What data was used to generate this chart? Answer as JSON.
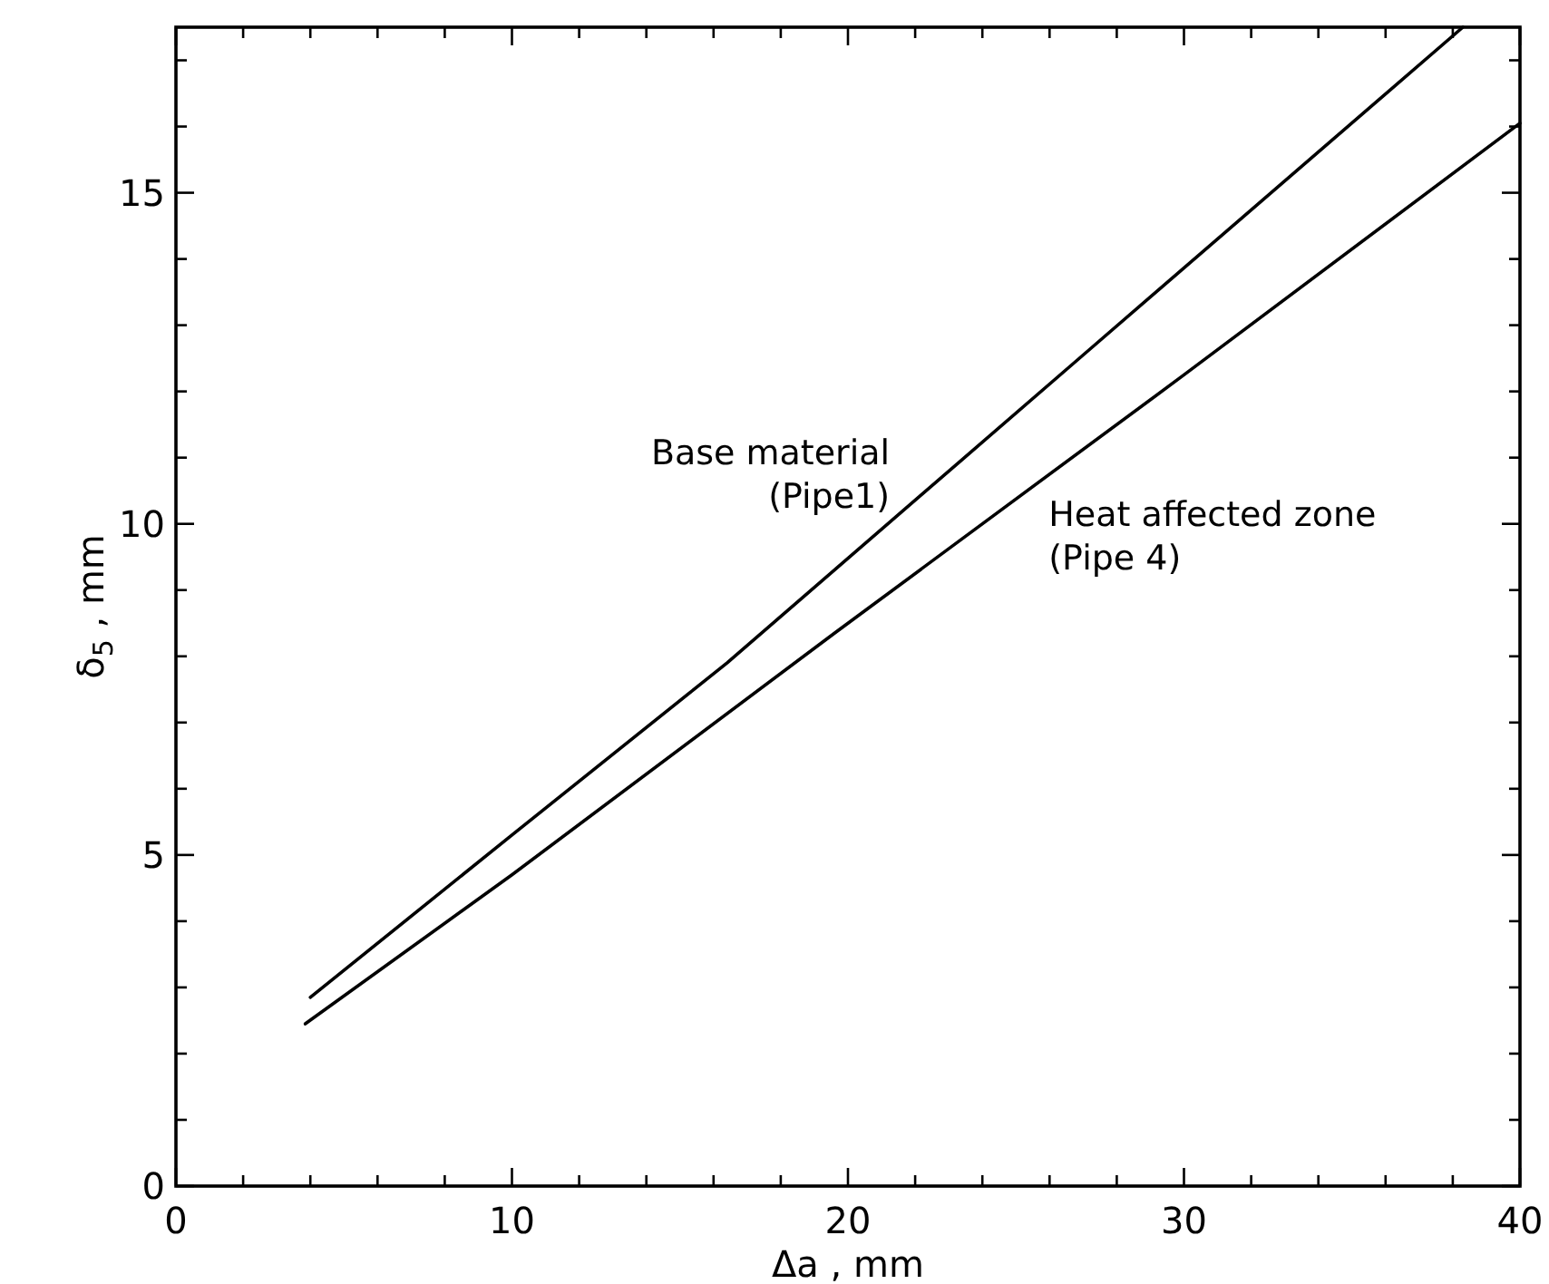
{
  "chart_data": {
    "type": "line",
    "xlabel": "Δa , mm",
    "ylabel": "δ$_{5}$ , mm",
    "xlim": [
      0,
      40
    ],
    "ylim": [
      0,
      17.5
    ],
    "xticks": [
      0,
      {
        "value": 2,
        "label": null
      },
      {
        "value": 4,
        "label": null
      },
      {
        "value": 6,
        "label": null
      },
      {
        "value": 8,
        "label": null
      },
      10,
      {
        "value": 12,
        "label": null
      },
      {
        "value": 14,
        "label": null
      },
      {
        "value": 16,
        "label": null
      },
      {
        "value": 18,
        "label": null
      },
      20,
      {
        "value": 22,
        "label": null
      },
      {
        "value": 24,
        "label": null
      },
      {
        "value": 26,
        "label": null
      },
      {
        "value": 28,
        "label": null
      },
      30,
      {
        "value": 32,
        "label": null
      },
      {
        "value": 34,
        "label": null
      },
      {
        "value": 36,
        "label": null
      },
      {
        "value": 38,
        "label": null
      },
      40
    ],
    "yticks": [
      0,
      {
        "value": 1,
        "label": null
      },
      {
        "value": 2,
        "label": null
      },
      {
        "value": 3,
        "label": null
      },
      {
        "value": 4,
        "label": null
      },
      5,
      {
        "value": 6,
        "label": null
      },
      {
        "value": 7,
        "label": null
      },
      {
        "value": 8,
        "label": null
      },
      {
        "value": 9,
        "label": null
      },
      10,
      {
        "value": 11,
        "label": null
      },
      {
        "value": 12,
        "label": null
      },
      {
        "value": 13,
        "label": null
      },
      {
        "value": 14,
        "label": null
      },
      15,
      {
        "value": 16,
        "label": null
      },
      {
        "value": 17,
        "label": null
      }
    ],
    "grid": false,
    "marker": "none",
    "line_style": "solid",
    "series": [
      {
        "name": "Base material\n(Pipe1)",
        "color": "#000000",
        "x": [
          4,
          10,
          16.4,
          27,
          38.3
        ],
        "values": [
          2.85,
          5.3,
          7.9,
          12.55,
          17.5
        ]
      },
      {
        "name": "Heat affected zone\n(Pipe 4)",
        "color": "#000000",
        "x": [
          3.85,
          10,
          19.6,
          30,
          40
        ],
        "values": [
          2.45,
          4.7,
          8.35,
          12.25,
          16.05
        ]
      }
    ]
  }
}
